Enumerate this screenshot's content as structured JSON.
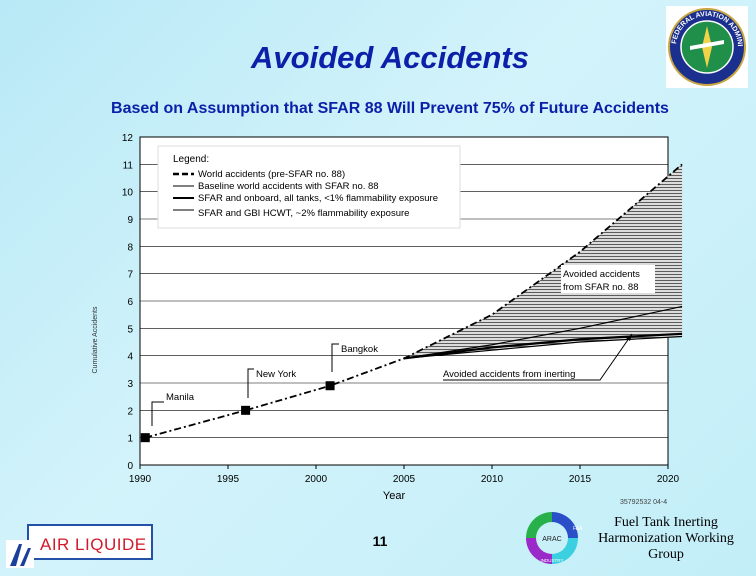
{
  "slide": {
    "title": "Avoided Accidents",
    "subtitle": "Based on Assumption that SFAR 88 Will Prevent 75% of Future Accidents",
    "page_number": "11",
    "group_line1": "Fuel Tank Inerting",
    "group_line2": "Harmonization Working",
    "group_line3": "Group",
    "doc_code": "35792532 04-4",
    "seal_text": "FEDERAL AVIATION ADMINISTRATION",
    "sponsor_logo_text": "AIR LIQUIDE",
    "arac_logo": {
      "center": "ARAC",
      "top_right": "FAA",
      "bottom": "INDUSTRY"
    }
  },
  "chart_data": {
    "type": "line",
    "xlabel": "Year",
    "ylabel": "Cumulative Accidents",
    "xlim": [
      1990,
      2020
    ],
    "ylim": [
      0,
      12
    ],
    "x_ticks": [
      "1990",
      "1995",
      "2000",
      "2005",
      "2010",
      "2015",
      "2020"
    ],
    "y_ticks": [
      "0",
      "1",
      "2",
      "3",
      "4",
      "5",
      "6",
      "7",
      "8",
      "9",
      "10",
      "11",
      "12"
    ],
    "grid": true,
    "legend_title": "Legend:",
    "legend_position": "top-left",
    "series": [
      {
        "name": "World accidents (pre-SFAR no. 88)",
        "style": "dashed",
        "x": [
          1990.3,
          1996,
          2000.8,
          2005,
          2010,
          2015,
          2020.8
        ],
        "y": [
          1,
          2,
          2.9,
          3.9,
          5.5,
          7.8,
          11
        ]
      },
      {
        "name": "Baseline world accidents with SFAR no. 88",
        "style": "solid",
        "x": [
          2005,
          2010,
          2015,
          2020.8
        ],
        "y": [
          3.9,
          4.4,
          5.0,
          5.8
        ]
      },
      {
        "name": "SFAR and onboard, all tanks, <1% flammability exposure",
        "style": "solid-thick",
        "x": [
          2005,
          2010,
          2015,
          2020.8
        ],
        "y": [
          3.9,
          4.3,
          4.6,
          4.8
        ]
      },
      {
        "name": "SFAR and GBI HCWT, ~2% flammability exposure",
        "style": "solid",
        "x": [
          2005,
          2010,
          2015,
          2020.8
        ],
        "y": [
          3.9,
          4.2,
          4.5,
          4.7
        ]
      }
    ],
    "markers": [
      {
        "x": 1990.3,
        "y": 1,
        "label": "Manila"
      },
      {
        "x": 1996,
        "y": 2,
        "label": "New York"
      },
      {
        "x": 2000.8,
        "y": 2.9,
        "label": "Bangkok"
      }
    ],
    "annotations": [
      {
        "text_line1": "Avoided accidents",
        "text_line2": "from SFAR no. 88"
      },
      {
        "text_line1": "Avoided accidents from inerting",
        "text_line2": ""
      }
    ],
    "colors": {
      "line": "#000000",
      "fill_avoided": "#9a9a9a",
      "marker": "#000000"
    }
  }
}
